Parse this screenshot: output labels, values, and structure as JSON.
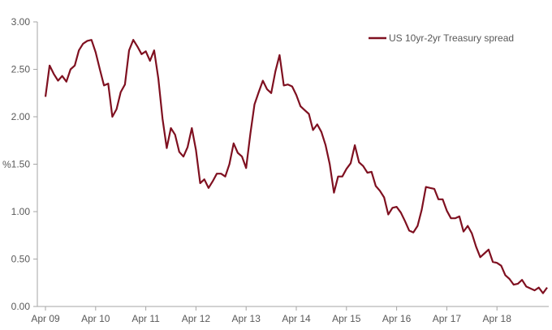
{
  "chart_data": {
    "type": "line",
    "title": "",
    "xlabel": "",
    "ylabel": "%",
    "ylim": [
      0,
      3
    ],
    "yticks": [
      "0.00",
      "0.50",
      "1.00",
      "1.50",
      "2.00",
      "2.50",
      "3.00"
    ],
    "xticks": [
      "Apr 09",
      "Apr 10",
      "Apr 11",
      "Apr 12",
      "Apr 13",
      "Apr 14",
      "Apr 15",
      "Apr 16",
      "Apr 17",
      "Apr 18"
    ],
    "grid": false,
    "legend_position": "top-right",
    "x_start": "Apr 09",
    "x_frequency": "monthly",
    "series": [
      {
        "name": "US 10yr-2yr Treasury spread",
        "color": "#7f1020",
        "values": [
          2.21,
          2.54,
          2.45,
          2.38,
          2.43,
          2.37,
          2.5,
          2.54,
          2.7,
          2.77,
          2.8,
          2.81,
          2.68,
          2.5,
          2.33,
          2.35,
          2.0,
          2.08,
          2.26,
          2.34,
          2.7,
          2.81,
          2.74,
          2.66,
          2.69,
          2.59,
          2.7,
          2.4,
          1.98,
          1.67,
          1.88,
          1.81,
          1.63,
          1.58,
          1.68,
          1.88,
          1.65,
          1.3,
          1.34,
          1.25,
          1.32,
          1.4,
          1.4,
          1.37,
          1.5,
          1.72,
          1.62,
          1.58,
          1.46,
          1.82,
          2.13,
          2.26,
          2.38,
          2.29,
          2.25,
          2.48,
          2.65,
          2.33,
          2.34,
          2.32,
          2.23,
          2.11,
          2.07,
          2.03,
          1.86,
          1.92,
          1.84,
          1.7,
          1.5,
          1.2,
          1.37,
          1.37,
          1.45,
          1.51,
          1.7,
          1.52,
          1.48,
          1.41,
          1.42,
          1.27,
          1.22,
          1.15,
          0.97,
          1.04,
          1.05,
          0.99,
          0.9,
          0.8,
          0.78,
          0.85,
          1.02,
          1.26,
          1.25,
          1.24,
          1.13,
          1.13,
          1.01,
          0.93,
          0.93,
          0.95,
          0.79,
          0.85,
          0.77,
          0.63,
          0.52,
          0.56,
          0.6,
          0.47,
          0.46,
          0.43,
          0.33,
          0.29,
          0.23,
          0.24,
          0.28,
          0.21,
          0.19,
          0.17,
          0.2,
          0.14,
          0.2
        ]
      }
    ]
  }
}
